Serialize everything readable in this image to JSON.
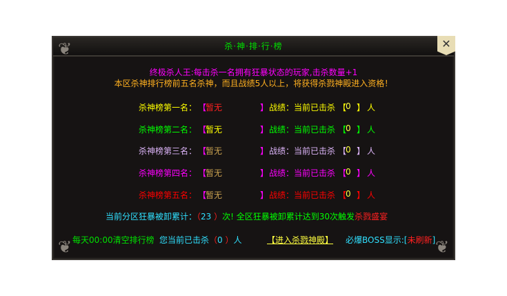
{
  "title": "杀·神·排·行·榜",
  "close_icon": "close-icon",
  "intro": {
    "line1": "终极杀人王:每击杀一名拥有狂暴状态的玩家,击杀数量+1",
    "line2": "本区杀神排行榜前五名杀神，而且战绩5人以上，将获得杀戮神殿进入资格！"
  },
  "rankings": [
    {
      "label": "杀神榜第一名：",
      "name": "暂无",
      "record_label": "战绩：当前已击杀",
      "kills": "0",
      "unit": "人",
      "color": "#ffff00",
      "name_color": "#ff2020"
    },
    {
      "label": "杀神榜第二名：",
      "name": "暂无",
      "record_label": "战绩：当前已击杀",
      "kills": "0",
      "unit": "人",
      "color": "#00ff00",
      "name_color": "#ffff00"
    },
    {
      "label": "杀神榜第三名：",
      "name": "暂无",
      "record_label": "战绩：当前已击杀",
      "kills": "0",
      "unit": "人",
      "color": "#dcb4f8",
      "name_color": "#c8a050"
    },
    {
      "label": "杀神榜第四名：",
      "name": "暂无",
      "record_label": "战绩：当前已击杀",
      "kills": "0",
      "unit": "人",
      "color": "#ff00ff",
      "name_color": "#c8a050"
    },
    {
      "label": "杀神榜第五名：",
      "name": "暂无",
      "record_label": "战绩：当前已击杀",
      "kills": "0",
      "unit": "人",
      "color": "#ff0000",
      "name_color": "#c8a050"
    }
  ],
  "bracket_open": "【",
  "bracket_close": "】",
  "stats": {
    "prefix": "当前分区狂暴被卸累计：",
    "count": "23",
    "suffix": "次!",
    "note": "全区狂暴被卸累计达到30次触发",
    "event": "杀戮盛宴"
  },
  "footer": {
    "reset": "每天00:00清空排行榜",
    "my_kills_prefix": "您当前已击杀",
    "my_kills": "0",
    "my_kills_unit": "人",
    "enter_button": "【进入杀戮神殿】",
    "boss_label": "必爆BOSS显示:",
    "boss_status": "未刷新"
  }
}
